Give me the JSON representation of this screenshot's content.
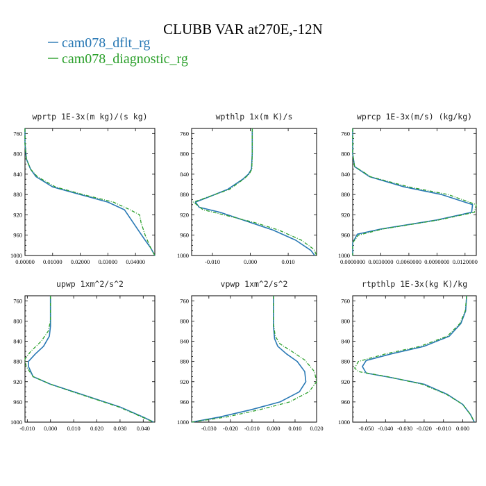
{
  "title": "CLUBB VAR at270E,-12N",
  "legend": [
    {
      "label": "cam078_dflt_rg",
      "color": "#2878b4"
    },
    {
      "label": "cam078_diagnostic_rg",
      "color": "#2ca02c"
    }
  ],
  "chart_data": [
    {
      "type": "line",
      "title": "wprtp  1E-3x(m kg)/(s kg)",
      "xlim": [
        0,
        0.047
      ],
      "ylim": [
        1000,
        750
      ],
      "xticks": [
        0,
        0.01,
        0.02,
        0.03,
        0.04
      ],
      "xtick_labels": [
        "0.00000",
        "0.01000",
        "0.02000",
        "0.03000",
        "0.04000"
      ],
      "yticks": [
        760,
        800,
        840,
        880,
        920,
        960,
        1000
      ],
      "series": [
        {
          "name": "cam078_dflt_rg",
          "x": [
            0,
            0,
            0.0005,
            0.002,
            0.004,
            0.01,
            0.02,
            0.03,
            0.036,
            0.0385,
            0.041,
            0.0435,
            0.0455,
            0.0465,
            0.047
          ],
          "y": [
            750,
            780,
            810,
            830,
            845,
            865,
            880,
            895,
            910,
            930,
            950,
            970,
            985,
            995,
            1000
          ]
        },
        {
          "name": "cam078_diagnostic_rg",
          "x": [
            0,
            0,
            0.0005,
            0.002,
            0.0045,
            0.011,
            0.021,
            0.032,
            0.038,
            0.0415,
            0.042,
            0.0435,
            0.0455,
            0.0465,
            0.047
          ],
          "y": [
            750,
            780,
            810,
            830,
            845,
            865,
            880,
            895,
            910,
            920,
            935,
            960,
            985,
            995,
            1000
          ]
        }
      ]
    },
    {
      "type": "line",
      "title": "wpthlp  1x(m K)/s",
      "xlim": [
        -0.0155,
        0.0175
      ],
      "ylim": [
        1000,
        750
      ],
      "xticks": [
        -0.01,
        0,
        0.01
      ],
      "xtick_labels": [
        "-0.010",
        "0.000",
        "0.010"
      ],
      "yticks": [
        760,
        800,
        840,
        880,
        920,
        960,
        1000
      ],
      "series": [
        {
          "name": "cam078_dflt_rg",
          "x": [
            0.0005,
            0.0005,
            0.0003,
            -0.0005,
            -0.002,
            -0.006,
            -0.011,
            -0.0145,
            -0.0135,
            -0.008,
            0,
            0.006,
            0.012,
            0.016,
            0.017
          ],
          "y": [
            750,
            800,
            830,
            840,
            850,
            870,
            885,
            895,
            905,
            915,
            935,
            950,
            970,
            990,
            1000
          ]
        },
        {
          "name": "cam078_diagnostic_rg",
          "x": [
            0.0005,
            0.0005,
            0.0004,
            -0.0003,
            -0.0018,
            -0.0055,
            -0.0105,
            -0.015,
            -0.0125,
            -0.007,
            0.001,
            0.0075,
            0.0135,
            0.0168,
            0.0175
          ],
          "y": [
            750,
            800,
            830,
            840,
            850,
            870,
            883,
            895,
            910,
            920,
            935,
            950,
            970,
            988,
            1000
          ]
        }
      ]
    },
    {
      "type": "line",
      "title": "wprcp  1E-3x(m/s) (kg/kg)",
      "xlim": [
        0,
        0.0132
      ],
      "ylim": [
        1000,
        750
      ],
      "xticks": [
        0,
        0.003,
        0.006,
        0.009,
        0.012
      ],
      "xtick_labels": [
        "0.0000000",
        "0.0030000",
        "0.0060000",
        "0.0090000",
        "0.0120000"
      ],
      "yticks": [
        760,
        800,
        840,
        880,
        920,
        960,
        1000
      ],
      "series": [
        {
          "name": "cam078_dflt_rg",
          "x": [
            0,
            0,
            0.0002,
            0.001,
            0.0018,
            0.0055,
            0.0095,
            0.0128,
            0.0127,
            0.009,
            0.003,
            0.0005,
            0,
            0
          ],
          "y": [
            750,
            800,
            825,
            835,
            845,
            865,
            880,
            900,
            915,
            930,
            948,
            958,
            975,
            1000
          ]
        },
        {
          "name": "cam078_diagnostic_rg",
          "x": [
            0,
            0,
            0.0002,
            0.0011,
            0.0019,
            0.006,
            0.0102,
            0.0132,
            0.013,
            0.0092,
            0.0032,
            0.0006,
            0,
            0
          ],
          "y": [
            750,
            800,
            825,
            835,
            845,
            865,
            880,
            900,
            915,
            930,
            948,
            960,
            975,
            1000
          ]
        }
      ]
    },
    {
      "type": "line",
      "title": "upwp  1xm^2/s^2",
      "xlim": [
        -0.011,
        0.045
      ],
      "ylim": [
        1000,
        750
      ],
      "xticks": [
        -0.01,
        0,
        0.01,
        0.02,
        0.03,
        0.04
      ],
      "xtick_labels": [
        "-0.010",
        "0.000",
        "0.010",
        "0.020",
        "0.030",
        "0.040"
      ],
      "yticks": [
        760,
        800,
        840,
        880,
        920,
        960,
        1000
      ],
      "series": [
        {
          "name": "cam078_dflt_rg",
          "x": [
            0,
            0,
            -0.0005,
            -0.003,
            -0.0065,
            -0.0095,
            -0.0095,
            -0.0075,
            0,
            0.01,
            0.02,
            0.03,
            0.04,
            0.0445
          ],
          "y": [
            750,
            810,
            830,
            850,
            865,
            880,
            890,
            910,
            925,
            940,
            955,
            970,
            990,
            1000
          ]
        },
        {
          "name": "cam078_diagnostic_rg",
          "x": [
            0,
            0,
            -0.001,
            -0.004,
            -0.0085,
            -0.011,
            -0.0105,
            -0.0075,
            0,
            0.0095,
            0.0195,
            0.0295,
            0.0395,
            0.0445
          ],
          "y": [
            750,
            800,
            820,
            840,
            860,
            875,
            890,
            910,
            925,
            940,
            955,
            970,
            990,
            1000
          ]
        }
      ]
    },
    {
      "type": "line",
      "title": "vpwp  1xm^2/s^2",
      "xlim": [
        -0.038,
        0.02
      ],
      "ylim": [
        1000,
        750
      ],
      "xticks": [
        -0.03,
        -0.02,
        -0.01,
        0,
        0.01,
        0.02
      ],
      "xtick_labels": [
        "-0.030",
        "-0.020",
        "-0.010",
        "0.000",
        "0.010",
        "0.020"
      ],
      "yticks": [
        760,
        800,
        840,
        880,
        920,
        960,
        1000
      ],
      "series": [
        {
          "name": "cam078_dflt_rg",
          "x": [
            0,
            0,
            0.0005,
            0.002,
            0.006,
            0.011,
            0.0145,
            0.015,
            0.012,
            0.003,
            -0.01,
            -0.025,
            -0.038
          ],
          "y": [
            750,
            810,
            835,
            850,
            865,
            880,
            900,
            920,
            940,
            960,
            975,
            990,
            1000
          ]
        },
        {
          "name": "cam078_diagnostic_rg",
          "x": [
            0,
            0,
            0.0008,
            0.003,
            0.0085,
            0.0145,
            0.019,
            0.02,
            0.0165,
            0.0075,
            -0.006,
            -0.022,
            -0.038
          ],
          "y": [
            750,
            805,
            830,
            845,
            860,
            877,
            900,
            920,
            940,
            960,
            975,
            990,
            1000
          ]
        }
      ]
    },
    {
      "type": "line",
      "title": "rtpthlp  1E-3x(kg K)/kg",
      "xlim": [
        -0.057,
        0.007
      ],
      "ylim": [
        1000,
        750
      ],
      "xticks": [
        -0.05,
        -0.04,
        -0.03,
        -0.02,
        -0.01,
        0
      ],
      "xtick_labels": [
        "-0.050",
        "-0.040",
        "-0.030",
        "-0.020",
        "-0.010",
        "0.000"
      ],
      "yticks": [
        760,
        800,
        840,
        880,
        920,
        960,
        1000
      ],
      "series": [
        {
          "name": "cam078_dflt_rg",
          "x": [
            0.002,
            0.0015,
            -0.001,
            -0.007,
            -0.02,
            -0.037,
            -0.05,
            -0.052,
            -0.05,
            -0.037,
            -0.02,
            -0.008,
            0,
            0.004,
            0.006
          ],
          "y": [
            750,
            780,
            805,
            830,
            850,
            865,
            878,
            890,
            903,
            912,
            925,
            945,
            965,
            985,
            1000
          ]
        },
        {
          "name": "cam078_diagnostic_rg",
          "x": [
            0.002,
            0.0013,
            -0.0015,
            -0.008,
            -0.022,
            -0.04,
            -0.054,
            -0.056,
            -0.054,
            -0.039,
            -0.021,
            -0.0085,
            0,
            0.004,
            0.006
          ],
          "y": [
            750,
            780,
            805,
            830,
            850,
            865,
            880,
            893,
            900,
            910,
            925,
            945,
            965,
            985,
            1000
          ]
        }
      ]
    }
  ]
}
